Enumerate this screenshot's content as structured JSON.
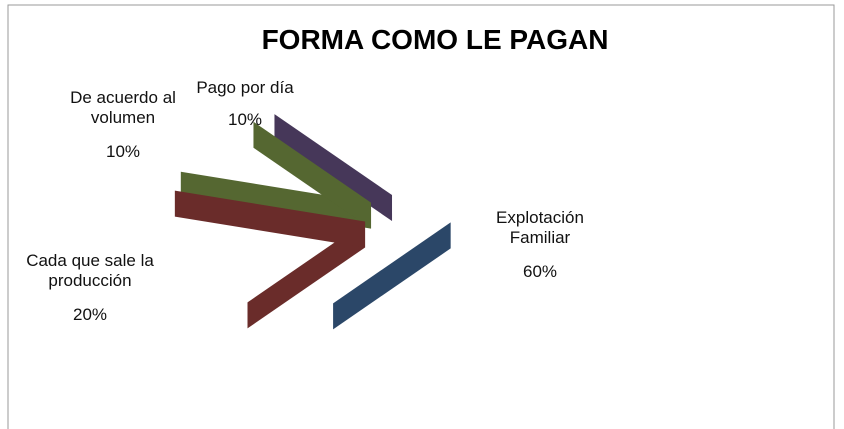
{
  "chart_data": {
    "type": "pie",
    "title": "FORMA COMO LE PAGAN",
    "categories": [
      "Explotación Familiar",
      "Cada que sale la producción",
      "De acuerdo al volumen",
      "Pago por día"
    ],
    "values": [
      60,
      20,
      10,
      10
    ],
    "value_labels": [
      "60%",
      "20%",
      "10%",
      "10%"
    ],
    "colors": [
      "#4f81bd",
      "#c0504d",
      "#9bbb59",
      "#8064a2"
    ],
    "legend": false
  }
}
